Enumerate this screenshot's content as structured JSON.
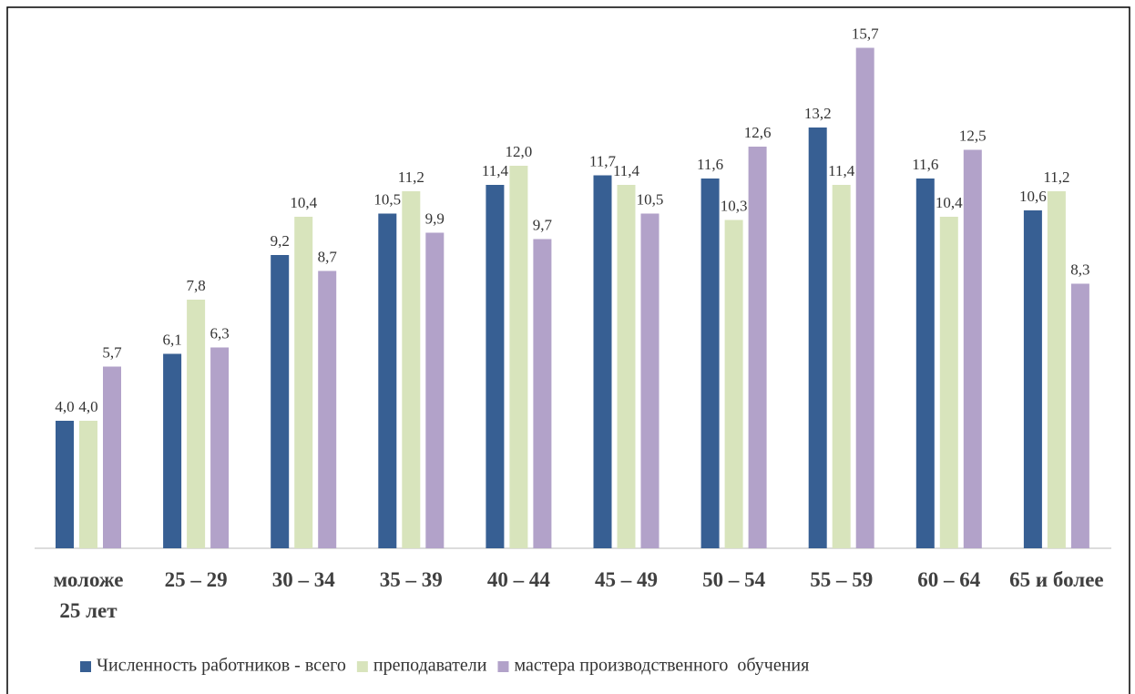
{
  "chart_data": {
    "type": "bar",
    "categories": [
      "моложе 25 лет",
      "25 – 29",
      "30 – 34",
      "35 – 39",
      "40 – 44",
      "45 – 49",
      "50 – 54",
      "55 – 59",
      "60 – 64",
      "65 и более"
    ],
    "series": [
      {
        "name": "Численность работников - всего",
        "color": "#375f93",
        "values": [
          4.0,
          6.1,
          9.2,
          10.5,
          11.4,
          11.7,
          11.6,
          13.2,
          11.6,
          10.6
        ],
        "value_labels": [
          "4,0",
          "6,1",
          "9,2",
          "10,5",
          "11,4",
          "11,7",
          "11,6",
          "13,2",
          "11,6",
          "10,6"
        ]
      },
      {
        "name": "преподаватели",
        "color": "#d8e4bc",
        "values": [
          4.0,
          7.8,
          10.4,
          11.2,
          12.0,
          11.4,
          10.3,
          11.4,
          10.4,
          11.2
        ],
        "value_labels": [
          "4,0",
          "7,8",
          "10,4",
          "11,2",
          "12,0",
          "11,4",
          "10,3",
          "11,4",
          "10,4",
          "11,2"
        ]
      },
      {
        "name": "мастера производственного  обучения",
        "color": "#b2a2c9",
        "values": [
          5.7,
          6.3,
          8.7,
          9.9,
          9.7,
          10.5,
          12.6,
          15.7,
          12.5,
          8.3
        ],
        "value_labels": [
          "5,7",
          "6,3",
          "8,7",
          "9,9",
          "9,7",
          "10,5",
          "12,6",
          "15,7",
          "12,5",
          "8,3"
        ]
      }
    ],
    "legend": "bottom"
  }
}
